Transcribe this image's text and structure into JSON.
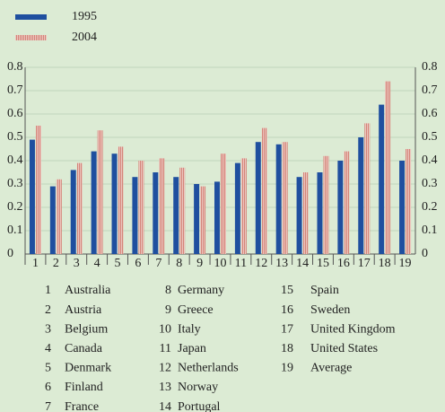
{
  "chart_data": {
    "type": "bar",
    "categories": [
      "1",
      "2",
      "3",
      "4",
      "5",
      "6",
      "7",
      "8",
      "9",
      "10",
      "11",
      "12",
      "13",
      "14",
      "15",
      "16",
      "17",
      "18",
      "19"
    ],
    "series": [
      {
        "name": "1995",
        "color": "#1f4f9f",
        "values": [
          0.49,
          0.29,
          0.36,
          0.44,
          0.43,
          0.33,
          0.35,
          0.33,
          0.3,
          0.31,
          0.39,
          0.48,
          0.47,
          0.33,
          0.35,
          0.4,
          0.5,
          0.64,
          0.4
        ]
      },
      {
        "name": "2004",
        "color": "#d4857a",
        "values": [
          0.55,
          0.32,
          0.39,
          0.53,
          0.46,
          0.4,
          0.41,
          0.37,
          0.29,
          0.43,
          0.41,
          0.54,
          0.48,
          0.35,
          0.42,
          0.44,
          0.56,
          0.74,
          0.45
        ]
      }
    ],
    "ylim": [
      0,
      0.8
    ],
    "yticks": [
      0,
      0.1,
      0.2,
      0.3,
      0.4,
      0.5,
      0.6,
      0.7,
      0.8
    ],
    "grid": true,
    "key": [
      [
        "1",
        "Australia"
      ],
      [
        "2",
        "Austria"
      ],
      [
        "3",
        "Belgium"
      ],
      [
        "4",
        "Canada"
      ],
      [
        "5",
        "Denmark"
      ],
      [
        "6",
        "Finland"
      ],
      [
        "7",
        "France"
      ],
      [
        "8",
        "Germany"
      ],
      [
        "9",
        "Greece"
      ],
      [
        "10",
        "Italy"
      ],
      [
        "11",
        "Japan"
      ],
      [
        "12",
        "Netherlands"
      ],
      [
        "13",
        "Norway"
      ],
      [
        "14",
        "Portugal"
      ],
      [
        "15",
        "Spain"
      ],
      [
        "16",
        "Sweden"
      ],
      [
        "17",
        "United Kingdom"
      ],
      [
        "18",
        "United States"
      ],
      [
        "19",
        "Average"
      ]
    ]
  }
}
